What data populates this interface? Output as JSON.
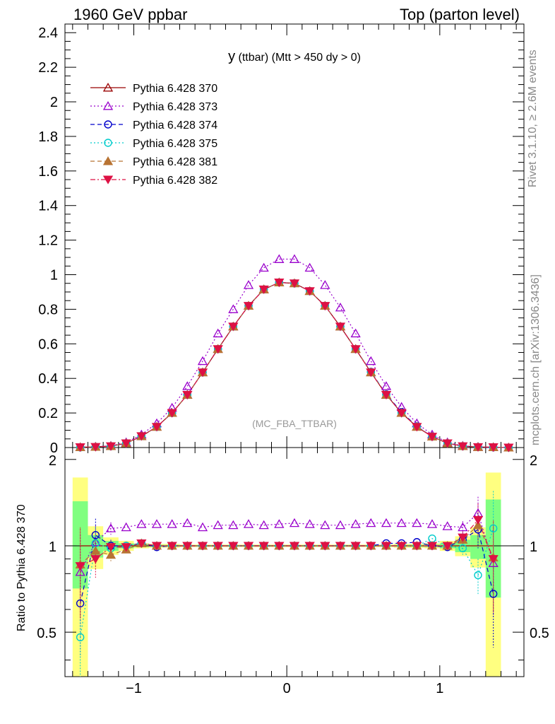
{
  "header": {
    "left": "1960 GeV ppbar",
    "right": "Top (parton level)"
  },
  "side_labels": {
    "rivet": "Rivet 3.1.10, ≥ 2.6M events",
    "mcplots": "mcplots.cern.ch [arXiv:1306.3436]"
  },
  "chart_data": [
    {
      "type": "line",
      "panel": "main",
      "title_main": "y",
      "title_rest": " (ttbar) (Mtt > 450 dy > 0)",
      "watermark": "(MC_FBA_TTBAR)",
      "xlabel": "",
      "ylabel": "",
      "xlim": [
        -1.45,
        1.55
      ],
      "ylim": [
        0,
        2.45
      ],
      "yticks": [
        0,
        0.2,
        0.4,
        0.6,
        0.8,
        1,
        1.2,
        1.4,
        1.6,
        1.8,
        2,
        2.2,
        2.4
      ],
      "ytick_labels": [
        "0",
        "0.2",
        "0.4",
        "0.6",
        "0.8",
        "1",
        "1.2",
        "1.4",
        "1.6",
        "1.8",
        "2",
        "2.2",
        "2.4"
      ],
      "legend_position": "top-left",
      "x": [
        -1.35,
        -1.25,
        -1.15,
        -1.05,
        -0.95,
        -0.85,
        -0.75,
        -0.65,
        -0.55,
        -0.45,
        -0.35,
        -0.25,
        -0.15,
        -0.05,
        0.05,
        0.15,
        0.25,
        0.35,
        0.45,
        0.55,
        0.65,
        0.75,
        0.85,
        0.95,
        1.05,
        1.15,
        1.25,
        1.35,
        1.45
      ],
      "series": [
        {
          "name": "Pythia 6.428 370",
          "color": "#990000",
          "marker": "triangle-open",
          "dash": "solid",
          "values": [
            0.002,
            0.004,
            0.008,
            0.025,
            0.065,
            0.12,
            0.2,
            0.305,
            0.435,
            0.57,
            0.7,
            0.82,
            0.915,
            0.955,
            0.95,
            0.905,
            0.82,
            0.7,
            0.57,
            0.435,
            0.305,
            0.2,
            0.12,
            0.063,
            0.025,
            0.008,
            0.003,
            0.002,
            0.0
          ]
        },
        {
          "name": "Pythia 6.428 373",
          "color": "#9900cc",
          "marker": "triangle-open",
          "dash": "dotted",
          "values": [
            0.002,
            0.005,
            0.01,
            0.03,
            0.075,
            0.14,
            0.23,
            0.355,
            0.5,
            0.66,
            0.8,
            0.94,
            1.04,
            1.09,
            1.09,
            1.04,
            0.94,
            0.81,
            0.66,
            0.5,
            0.355,
            0.235,
            0.14,
            0.075,
            0.03,
            0.01,
            0.004,
            0.002,
            0.0
          ]
        },
        {
          "name": "Pythia 6.428 374",
          "color": "#0000cc",
          "marker": "circle-open",
          "dash": "dashed",
          "values": [
            0.001,
            0.004,
            0.008,
            0.025,
            0.066,
            0.12,
            0.2,
            0.305,
            0.435,
            0.57,
            0.7,
            0.82,
            0.915,
            0.955,
            0.95,
            0.905,
            0.82,
            0.7,
            0.57,
            0.438,
            0.308,
            0.205,
            0.123,
            0.063,
            0.025,
            0.008,
            0.003,
            0.001,
            0.0
          ]
        },
        {
          "name": "Pythia 6.428 375",
          "color": "#00cccc",
          "marker": "circle-open",
          "dash": "dotted",
          "values": [
            0.001,
            0.004,
            0.008,
            0.025,
            0.066,
            0.12,
            0.2,
            0.305,
            0.435,
            0.57,
            0.7,
            0.82,
            0.915,
            0.955,
            0.95,
            0.905,
            0.82,
            0.7,
            0.57,
            0.436,
            0.306,
            0.2,
            0.122,
            0.064,
            0.025,
            0.008,
            0.003,
            0.002,
            0.0
          ]
        },
        {
          "name": "Pythia 6.428 381",
          "color": "#b87333",
          "marker": "triangle-filled",
          "dash": "dashed",
          "values": [
            0.002,
            0.004,
            0.008,
            0.025,
            0.066,
            0.12,
            0.2,
            0.305,
            0.435,
            0.57,
            0.7,
            0.82,
            0.915,
            0.955,
            0.95,
            0.905,
            0.82,
            0.7,
            0.57,
            0.435,
            0.305,
            0.2,
            0.12,
            0.063,
            0.025,
            0.008,
            0.003,
            0.002,
            0.0
          ]
        },
        {
          "name": "Pythia 6.428 382",
          "color": "#dd1144",
          "marker": "triangle-down-filled",
          "dash": "dashdot",
          "values": [
            0.002,
            0.004,
            0.008,
            0.025,
            0.066,
            0.12,
            0.2,
            0.305,
            0.435,
            0.57,
            0.7,
            0.82,
            0.915,
            0.955,
            0.95,
            0.905,
            0.82,
            0.7,
            0.57,
            0.435,
            0.305,
            0.2,
            0.12,
            0.063,
            0.025,
            0.008,
            0.003,
            0.002,
            0.0
          ]
        }
      ]
    },
    {
      "type": "line",
      "panel": "ratio",
      "ylabel": "Ratio to Pythia 6.428 370",
      "xlim": [
        -1.45,
        1.55
      ],
      "ylim": [
        0.35,
        2.2
      ],
      "xticks": [
        -1,
        0,
        1
      ],
      "xtick_labels": [
        "−1",
        "0",
        "1"
      ],
      "yticks": [
        0.5,
        1,
        2
      ],
      "ytick_labels": [
        "0.5",
        "1",
        "2"
      ],
      "reference_line": 1,
      "x": [
        -1.35,
        -1.25,
        -1.15,
        -1.05,
        -0.95,
        -0.85,
        -0.75,
        -0.65,
        -0.55,
        -0.45,
        -0.35,
        -0.25,
        -0.15,
        -0.05,
        0.05,
        0.15,
        0.25,
        0.35,
        0.45,
        0.55,
        0.65,
        0.75,
        0.85,
        0.95,
        1.05,
        1.15,
        1.25,
        1.35
      ],
      "bands": {
        "yellow_color": "#ffff80",
        "green_color": "#80ff80",
        "yellow_low": [
          0.35,
          0.83,
          0.93,
          0.96,
          0.98,
          0.985,
          0.985,
          0.99,
          0.99,
          0.99,
          0.99,
          0.99,
          0.99,
          0.99,
          0.99,
          0.99,
          0.99,
          0.99,
          0.99,
          0.99,
          0.99,
          0.985,
          0.985,
          0.98,
          0.96,
          0.92,
          0.84,
          0.35
        ],
        "yellow_high": [
          1.73,
          1.17,
          1.07,
          1.04,
          1.02,
          1.015,
          1.015,
          1.01,
          1.01,
          1.01,
          1.01,
          1.01,
          1.01,
          1.01,
          1.01,
          1.01,
          1.01,
          1.01,
          1.01,
          1.01,
          1.01,
          1.015,
          1.015,
          1.02,
          1.04,
          1.08,
          1.16,
          1.8
        ],
        "green_low": [
          0.71,
          0.91,
          0.96,
          0.98,
          0.99,
          0.992,
          0.993,
          0.995,
          0.995,
          0.995,
          0.995,
          0.995,
          0.995,
          0.995,
          0.995,
          0.995,
          0.995,
          0.995,
          0.995,
          0.995,
          0.995,
          0.993,
          0.992,
          0.99,
          0.98,
          0.95,
          0.9,
          0.66
        ],
        "green_high": [
          1.43,
          1.09,
          1.04,
          1.02,
          1.01,
          1.008,
          1.007,
          1.005,
          1.005,
          1.005,
          1.005,
          1.005,
          1.005,
          1.005,
          1.005,
          1.005,
          1.005,
          1.005,
          1.005,
          1.005,
          1.005,
          1.007,
          1.008,
          1.01,
          1.02,
          1.05,
          1.09,
          1.45
        ]
      },
      "series": [
        {
          "name": "Pythia 6.428 370",
          "values": [
            1,
            1,
            1,
            1,
            1,
            1,
            1,
            1,
            1,
            1,
            1,
            1,
            1,
            1,
            1,
            1,
            1,
            1,
            1,
            1,
            1,
            1,
            1,
            1,
            1,
            1,
            1,
            1
          ]
        },
        {
          "name": "Pythia 6.428 373",
          "values": [
            0.81,
            1.03,
            1.15,
            1.16,
            1.19,
            1.19,
            1.19,
            1.2,
            1.16,
            1.18,
            1.18,
            1.19,
            1.18,
            1.19,
            1.2,
            1.19,
            1.18,
            1.18,
            1.19,
            1.2,
            1.2,
            1.2,
            1.2,
            1.19,
            1.17,
            1.16,
            1.3,
            0.87
          ]
        },
        {
          "name": "Pythia 6.428 374",
          "values": [
            0.63,
            1.09,
            1.0,
            1.0,
            1.02,
            0.99,
            1.0,
            1.0,
            1.0,
            1.0,
            1.0,
            1.0,
            1.0,
            1.0,
            1.0,
            1.0,
            1.0,
            1.0,
            1.0,
            1.0,
            1.02,
            1.02,
            1.03,
            1.0,
            0.99,
            1.05,
            1.14,
            0.68
          ]
        },
        {
          "name": "Pythia 6.428 375",
          "values": [
            0.48,
            1.02,
            0.98,
            1.0,
            1.02,
            1.0,
            1.0,
            1.0,
            1.0,
            1.0,
            1.0,
            1.0,
            1.0,
            1.0,
            1.0,
            1.0,
            1.0,
            1.0,
            1.0,
            1.0,
            1.0,
            1.0,
            1.0,
            1.06,
            1.0,
            0.98,
            0.79,
            1.15
          ]
        },
        {
          "name": "Pythia 6.428 381",
          "values": [
            0.86,
            0.96,
            0.93,
            0.97,
            1.02,
            1.0,
            1.0,
            1.0,
            1.0,
            1.0,
            1.0,
            1.0,
            1.0,
            1.0,
            1.0,
            1.0,
            1.0,
            1.0,
            1.0,
            1.0,
            1.0,
            1.0,
            1.0,
            1.0,
            1.0,
            1.05,
            1.18,
            0.91
          ]
        },
        {
          "name": "Pythia 6.428 382",
          "values": [
            0.85,
            0.9,
            0.99,
            0.99,
            1.02,
            1.0,
            1.0,
            1.0,
            1.0,
            1.0,
            1.0,
            1.0,
            1.0,
            1.0,
            1.0,
            1.0,
            1.0,
            1.0,
            1.0,
            1.0,
            1.0,
            1.0,
            1.0,
            1.0,
            1.0,
            1.07,
            1.23,
            0.9
          ]
        }
      ]
    }
  ]
}
